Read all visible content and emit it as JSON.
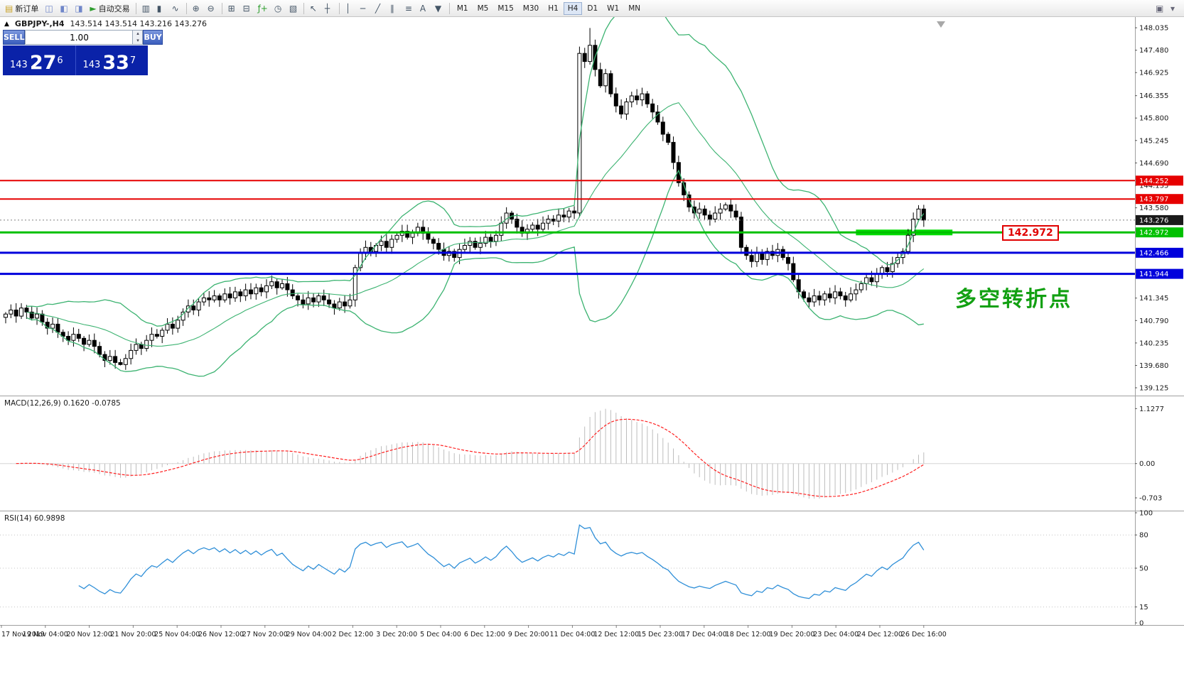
{
  "toolbar": {
    "buttons": [
      {
        "name": "new-order-button",
        "glyph": "▤",
        "color": "#c9a227",
        "label": "新订单"
      },
      {
        "name": "chart-profiles-button",
        "glyph": "◫",
        "color": "#6f86c9"
      },
      {
        "name": "market-watch-button",
        "glyph": "◧",
        "color": "#6f86c9"
      },
      {
        "name": "navigator-button",
        "glyph": "◨",
        "color": "#6f86c9"
      },
      {
        "name": "auto-trading-button",
        "glyph": "►",
        "color": "#2f9e2f",
        "label": "自动交易"
      },
      {
        "sep": true
      },
      {
        "name": "bar-chart-button",
        "glyph": "▥",
        "color": "#445566"
      },
      {
        "name": "candlestick-chart-button",
        "glyph": "▮",
        "color": "#445566"
      },
      {
        "name": "line-chart-button",
        "glyph": "∿",
        "color": "#445566"
      },
      {
        "sep": true
      },
      {
        "name": "zoom-in-button",
        "glyph": "⊕",
        "color": "#445566"
      },
      {
        "name": "zoom-out-button",
        "glyph": "⊖",
        "color": "#445566"
      },
      {
        "sep": true
      },
      {
        "name": "tile-windows-button",
        "glyph": "⊞",
        "color": "#445566"
      },
      {
        "name": "cascade-windows-button",
        "glyph": "⊟",
        "color": "#445566"
      },
      {
        "name": "indicators-button",
        "glyph": "ƒ+",
        "color": "#2f9e2f"
      },
      {
        "name": "periods-button",
        "glyph": "◷",
        "color": "#445566"
      },
      {
        "name": "templates-button",
        "glyph": "▧",
        "color": "#445566"
      },
      {
        "sep": true
      },
      {
        "name": "cursor-button",
        "glyph": "↖",
        "color": "#445566"
      },
      {
        "name": "crosshair-button",
        "glyph": "┼",
        "color": "#445566"
      },
      {
        "sep": true
      },
      {
        "name": "vertical-line-button",
        "glyph": "│",
        "color": "#445566"
      },
      {
        "name": "horizontal-line-button",
        "glyph": "─",
        "color": "#445566"
      },
      {
        "name": "trendline-button",
        "glyph": "╱",
        "color": "#445566"
      },
      {
        "name": "channel-button",
        "glyph": "∥",
        "color": "#445566"
      },
      {
        "name": "fibonacci-button",
        "glyph": "≡",
        "color": "#445566"
      },
      {
        "name": "text-label-button",
        "glyph": "A",
        "color": "#445566"
      },
      {
        "name": "arrow-tools-button",
        "glyph": "▼",
        "color": "#445566"
      },
      {
        "sep": true
      }
    ],
    "timeframes": [
      {
        "label": "M1",
        "active": false
      },
      {
        "label": "M5",
        "active": false
      },
      {
        "label": "M15",
        "active": false
      },
      {
        "label": "M30",
        "active": false
      },
      {
        "label": "H1",
        "active": false
      },
      {
        "label": "H4",
        "active": true
      },
      {
        "label": "D1",
        "active": false
      },
      {
        "label": "W1",
        "active": false
      },
      {
        "label": "MN",
        "active": false
      }
    ],
    "right_buttons": [
      {
        "name": "window-restore-button",
        "glyph": "▣"
      },
      {
        "name": "toolbar-options-button",
        "glyph": "▾"
      }
    ]
  },
  "chart": {
    "symbol_period": "GBPJPY-,H4",
    "ohlc_text": "143.514 143.514 143.216 143.276",
    "price_callout": "142.972",
    "annotation": "多空转折点"
  },
  "order_panel": {
    "collapse_glyph": "▲",
    "sell_label": "SELL",
    "buy_label": "BUY",
    "volume": "1.00",
    "spin_up_glyph": "▴",
    "spin_down_glyph": "▾",
    "sell_price": {
      "prefix": "143",
      "big": "27",
      "sup": "6"
    },
    "buy_price": {
      "prefix": "143",
      "big": "33",
      "sup": "7"
    }
  },
  "chart_data": {
    "type": "candlestick",
    "symbol": "GBPJPY-",
    "period": "H4",
    "y_range": [
      138.95,
      148.3
    ],
    "closes": [
      140.95,
      141.05,
      140.9,
      141.1,
      141.0,
      140.85,
      140.95,
      140.75,
      140.6,
      140.7,
      140.5,
      140.4,
      140.3,
      140.45,
      140.35,
      140.2,
      140.3,
      140.15,
      139.95,
      139.8,
      139.9,
      139.75,
      139.7,
      139.85,
      140.05,
      140.2,
      140.1,
      140.3,
      140.45,
      140.4,
      140.55,
      140.7,
      140.6,
      140.8,
      141.0,
      141.15,
      141.05,
      141.25,
      141.35,
      141.3,
      141.4,
      141.3,
      141.45,
      141.35,
      141.5,
      141.4,
      141.55,
      141.45,
      141.6,
      141.5,
      141.65,
      141.75,
      141.6,
      141.7,
      141.55,
      141.4,
      141.3,
      141.2,
      141.35,
      141.25,
      141.4,
      141.3,
      141.2,
      141.1,
      141.25,
      141.15,
      141.3,
      142.1,
      142.45,
      142.6,
      142.5,
      142.65,
      142.75,
      142.6,
      142.8,
      142.9,
      143.0,
      142.85,
      142.95,
      143.1,
      142.95,
      142.8,
      142.7,
      142.55,
      142.4,
      142.5,
      142.35,
      142.55,
      142.65,
      142.75,
      142.6,
      142.7,
      142.85,
      142.75,
      142.9,
      143.2,
      143.45,
      143.3,
      143.1,
      142.95,
      143.05,
      143.15,
      143.05,
      143.2,
      143.3,
      143.25,
      143.4,
      143.35,
      143.5,
      143.45,
      147.4,
      147.2,
      147.6,
      147.0,
      146.6,
      146.9,
      146.4,
      146.1,
      145.9,
      146.2,
      146.35,
      146.25,
      146.4,
      146.15,
      145.95,
      145.7,
      145.4,
      145.2,
      144.7,
      144.2,
      143.9,
      143.6,
      143.45,
      143.55,
      143.4,
      143.3,
      143.45,
      143.55,
      143.65,
      143.5,
      143.35,
      142.6,
      142.4,
      142.25,
      142.45,
      142.3,
      142.5,
      142.4,
      142.55,
      142.35,
      142.2,
      141.8,
      141.5,
      141.35,
      141.25,
      141.4,
      141.3,
      141.45,
      141.35,
      141.5,
      141.4,
      141.3,
      141.45,
      141.55,
      141.7,
      141.85,
      141.75,
      141.95,
      142.1,
      142.0,
      142.2,
      142.35,
      142.5,
      142.9,
      143.3,
      143.55,
      143.276
    ],
    "wick_overrides": {
      "22": {
        "low": 139.68
      },
      "112": {
        "high": 148.03
      }
    },
    "price_ticks": [
      "148.035",
      "147.480",
      "146.925",
      "146.355",
      "145.800",
      "145.245",
      "144.690",
      "144.135",
      "143.580",
      "141.345",
      "140.790",
      "140.235",
      "139.680",
      "139.125"
    ],
    "hlines": [
      {
        "price": 144.252,
        "label": "144.252",
        "color": "#e60000",
        "width": 2
      },
      {
        "price": 143.797,
        "label": "143.797",
        "color": "#e60000",
        "width": 2
      },
      {
        "price": 142.972,
        "label": "142.972",
        "color": "#00c000",
        "width": 3
      },
      {
        "price": 142.466,
        "label": "142.466",
        "color": "#0000dc",
        "width": 3
      },
      {
        "price": 141.944,
        "label": "141.944",
        "color": "#0000dc",
        "width": 3
      }
    ],
    "current_price": {
      "price": 143.276,
      "label": "143.276",
      "color": "#1a1a1a"
    },
    "rect": {
      "x1_bar": 163,
      "x2_bar": 181.5,
      "price_top": 143.04,
      "price_bottom": 142.9,
      "color": "#00dc00"
    },
    "indicators": {
      "bollinger": {
        "period": 20,
        "deviation": 2,
        "color": "#3cb371"
      },
      "macd": {
        "label": "MACD(12,26,9) 0.1620 -0.0785",
        "fast": 12,
        "slow": 26,
        "signal": 9,
        "y_range": [
          -0.95,
          1.35
        ],
        "hist_color": "#bdbdbd",
        "signal_color": "#ff2020",
        "ticks": [
          {
            "v": 1.1277,
            "label": "1.1277"
          },
          {
            "v": 0,
            "label": "0.00"
          },
          {
            "v": -0.703,
            "label": "-0.703"
          }
        ]
      },
      "rsi": {
        "label": "RSI(14) 60.9898",
        "period": 14,
        "color": "#2f8fd8",
        "y_range": [
          0,
          100
        ],
        "ticks": [
          {
            "v": 100,
            "label": "100"
          },
          {
            "v": 80,
            "label": "80"
          },
          {
            "v": 50,
            "label": "50"
          },
          {
            "v": 15,
            "label": "15"
          },
          {
            "v": 0,
            "label": "0"
          }
        ]
      }
    },
    "time_axis": [
      "17 Nov 2019",
      "19 Nov 04:00",
      "20 Nov 12:00",
      "21 Nov 20:00",
      "25 Nov 04:00",
      "26 Nov 12:00",
      "27 Nov 20:00",
      "29 Nov 04:00",
      "2 Dec 12:00",
      "3 Dec 20:00",
      "5 Dec 04:00",
      "6 Dec 12:00",
      "9 Dec 20:00",
      "11 Dec 04:00",
      "12 Dec 12:00",
      "15 Dec 23:00",
      "17 Dec 04:00",
      "18 Dec 12:00",
      "19 Dec 20:00",
      "23 Dec 04:00",
      "24 Dec 12:00",
      "26 Dec 16:00"
    ]
  }
}
